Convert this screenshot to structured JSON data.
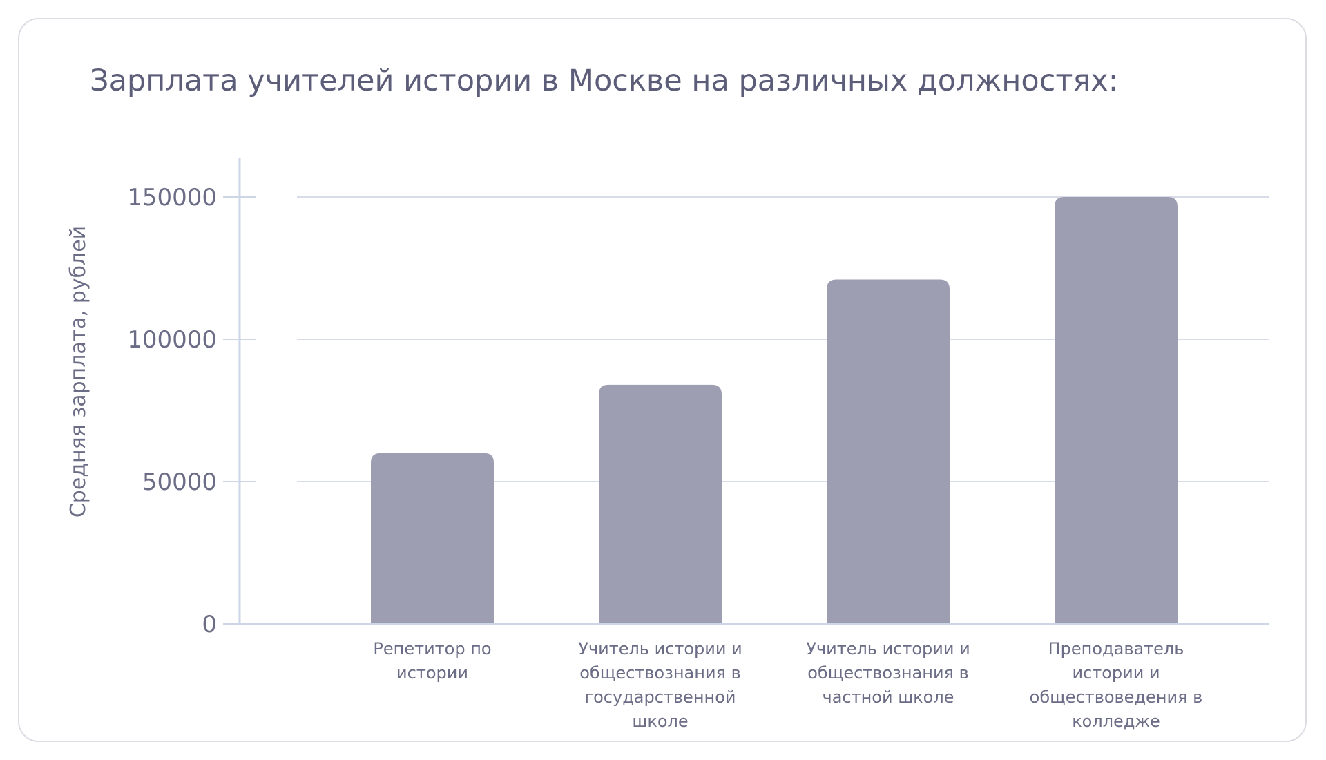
{
  "chart_data": {
    "type": "bar",
    "title": "Зарплата учителей истории в Москве на различных должностях:",
    "ylabel": "Средняя зарплата, рублей",
    "xlabel": "",
    "ylim": [
      0,
      165000
    ],
    "yticks": [
      0,
      50000,
      100000,
      150000
    ],
    "grid": true,
    "categories": [
      [
        "Репетитор по",
        "истории"
      ],
      [
        "Учитель истории и",
        "обществознания в",
        "государственной",
        "школе"
      ],
      [
        "Учитель истории и",
        "обществознания в",
        "частной школе"
      ],
      [
        "Преподаватель",
        "истории и",
        "обществоведения в",
        "колледже"
      ]
    ],
    "values": [
      60000,
      84000,
      121000,
      150000
    ]
  },
  "colors": {
    "bar": "#9d9eb1",
    "grid": "#d8dbe8",
    "axis": "#ccd6e6",
    "tick_text": "#6b6c85",
    "category_text": "#6b6c85",
    "title_text": "#5c5d78"
  }
}
